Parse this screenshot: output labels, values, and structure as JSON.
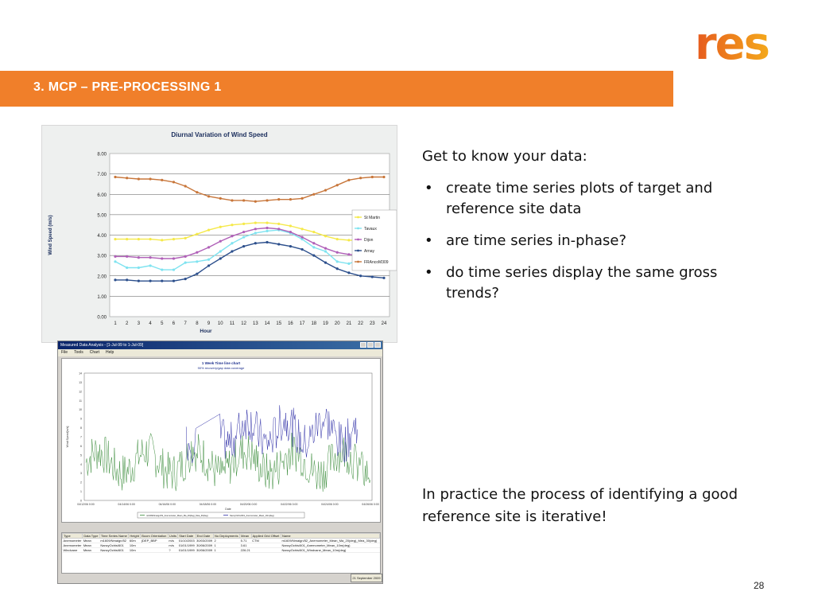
{
  "logo": {
    "text": "res",
    "color_start": "#e65a1e",
    "color_end": "#f4a81b"
  },
  "title_bar": {
    "text": "3.   MCP – PRE-PROCESSING 1",
    "color": "#f07f2a"
  },
  "chart_data": [
    {
      "type": "line",
      "title": "Diurnal Variation of Wind Speed",
      "xlabel": "Hour",
      "ylabel": "Wind Speed (m/s)",
      "ylim": [
        0,
        8
      ],
      "yticks": [
        "0.00",
        "1.00",
        "2.00",
        "3.00",
        "4.00",
        "5.00",
        "6.00",
        "7.00",
        "8.00"
      ],
      "x": [
        1,
        2,
        3,
        4,
        5,
        6,
        7,
        8,
        9,
        10,
        11,
        12,
        13,
        14,
        15,
        16,
        17,
        18,
        19,
        20,
        21,
        22,
        23,
        24
      ],
      "legend_position": "right",
      "grid": true,
      "series": [
        {
          "name": "St Martin",
          "color": "#f5e94a",
          "values": [
            3.8,
            3.8,
            3.8,
            3.8,
            3.75,
            3.8,
            3.85,
            4.05,
            4.25,
            4.4,
            4.5,
            4.55,
            4.6,
            4.6,
            4.55,
            4.45,
            4.3,
            4.15,
            3.95,
            3.8,
            3.75,
            3.75,
            3.8,
            3.8
          ]
        },
        {
          "name": "Tavaux",
          "color": "#7fe3f0",
          "values": [
            2.7,
            2.4,
            2.4,
            2.5,
            2.3,
            2.3,
            2.65,
            2.7,
            2.8,
            3.2,
            3.6,
            3.9,
            4.1,
            4.2,
            4.25,
            4.1,
            3.8,
            3.4,
            3.2,
            2.7,
            2.6,
            2.8,
            2.5,
            2.5
          ]
        },
        {
          "name": "Dijon",
          "color": "#b060b8",
          "values": [
            2.95,
            2.95,
            2.9,
            2.9,
            2.85,
            2.85,
            2.95,
            3.15,
            3.4,
            3.7,
            3.95,
            4.15,
            4.3,
            4.35,
            4.3,
            4.15,
            3.9,
            3.6,
            3.35,
            3.15,
            3.05,
            3.0,
            2.95,
            2.95
          ]
        },
        {
          "name": "Arnay",
          "color": "#2c4f8c",
          "values": [
            1.8,
            1.8,
            1.75,
            1.75,
            1.75,
            1.75,
            1.85,
            2.1,
            2.5,
            2.85,
            3.2,
            3.45,
            3.6,
            3.65,
            3.55,
            3.45,
            3.3,
            3.0,
            2.65,
            2.35,
            2.15,
            2.0,
            1.95,
            1.9
          ]
        },
        {
          "name": "FRAncoM309",
          "color": "#c8763a",
          "values": [
            6.85,
            6.8,
            6.75,
            6.75,
            6.7,
            6.6,
            6.4,
            6.1,
            5.9,
            5.8,
            5.7,
            5.7,
            5.65,
            5.7,
            5.75,
            5.75,
            5.8,
            6.0,
            6.2,
            6.45,
            6.7,
            6.8,
            6.85,
            6.85
          ]
        }
      ]
    },
    {
      "type": "line",
      "title": "1 Week Time line chart",
      "subtitle": "90% recovery/gap data coverage",
      "xlabel": "Date",
      "ylabel": "Wind Speed[m/s]",
      "ylim": [
        0,
        14
      ],
      "yticks": [
        "0",
        "1",
        "2",
        "3",
        "4",
        "5",
        "6",
        "7",
        "8",
        "9",
        "10",
        "11",
        "12",
        "13",
        "14"
      ],
      "xticks": [
        "04/12/06 0:00",
        "04/14/06 0:00",
        "04/16/06 0:00",
        "04/18/06 0:00",
        "04/20/06 0:00",
        "04/22/06 0:00",
        "04/24/06 0:00",
        "04/26/06 0:00"
      ],
      "legend_position": "bottom",
      "series": [
        {
          "name": "m1609/Nmaign/52_Anemometer_Mean_Ma_20(deg)_Mea_30(deg)",
          "color": "#3a8c3a"
        },
        {
          "name": "NancyOchis/601_Anemometer_Mean_10m(deg)",
          "color": "#3030a8"
        }
      ]
    }
  ],
  "screenshot": {
    "window_title": "Measured Data Analysis - [1-Jul-99 to 1-Jul-09]",
    "menu": [
      "File",
      "Tools",
      "Chart",
      "Help"
    ],
    "table": {
      "headers": [
        "Type",
        "Data Type",
        "Time Series Name",
        "Height",
        "Boom Orientation",
        "Units",
        "Start Date",
        "End Date",
        "No Deployments",
        "Mean",
        "Applied Grid Offset",
        "Name"
      ],
      "rows": [
        [
          "Anemometer",
          "Mean",
          "m1609/Nmaign/52",
          "60m",
          "(DEP_BBP",
          "m/s",
          "01/10/2003",
          "30/03/2009",
          "2",
          "5.71",
          "CTM",
          "m1609/Nmaign/52_Anemometer_Mean_Ma_20(deg)_Mea_30(deg)"
        ],
        [
          "Anemometer",
          "Mean",
          "NancyOchis/601",
          "10m",
          "",
          "m/s",
          "01/01/1999",
          "30/06/2009",
          "1",
          "3.61",
          "",
          "NancyOchis/601_Anemometer_Mean_10m(deg)"
        ],
        [
          "Windvane",
          "Mean",
          "NancyOchis/601",
          "10m",
          "",
          "?",
          "01/01/1999",
          "30/06/2009",
          "1",
          "226.21",
          "",
          "NancyOchis/601_Windvane_Mean_10m(deg)"
        ]
      ]
    },
    "status": "21 September 2009"
  },
  "content": {
    "intro": "Get to know your data:",
    "bullets": [
      "create time series plots of target and reference site data",
      "are time series in-phase?",
      "do time series display the same gross trends?"
    ],
    "conclusion": "In practice the process of identifying a good reference site is iterative!"
  },
  "page_number": "28"
}
